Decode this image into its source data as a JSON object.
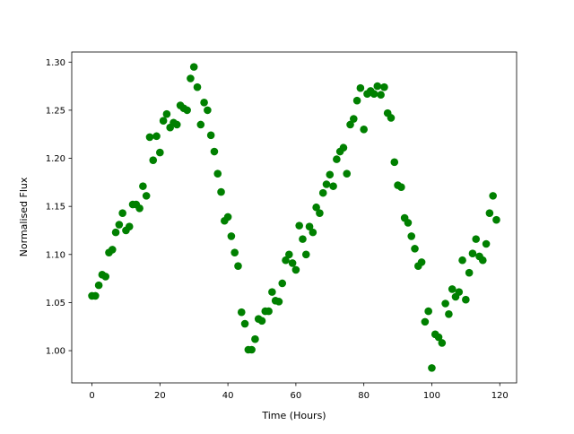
{
  "chart_data": {
    "type": "scatter",
    "x_label": "Time (Hours)",
    "y_label": "Normalised Flux",
    "color": "#008000",
    "x": [
      0,
      1,
      2,
      3,
      4,
      5,
      6,
      7,
      8,
      9,
      10,
      11,
      12,
      13,
      14,
      15,
      16,
      17,
      18,
      19,
      20,
      21,
      22,
      23,
      24,
      25,
      26,
      27,
      28,
      29,
      30,
      31,
      32,
      33,
      34,
      35,
      36,
      37,
      38,
      39,
      40,
      41,
      42,
      43,
      44,
      45,
      46,
      47,
      48,
      49,
      50,
      51,
      52,
      53,
      54,
      55,
      56,
      57,
      58,
      59,
      60,
      61,
      62,
      63,
      64,
      65,
      66,
      67,
      68,
      69,
      70,
      71,
      72,
      73,
      74,
      75,
      76,
      77,
      78,
      79,
      80,
      81,
      82,
      83,
      84,
      85,
      86,
      87,
      88,
      89,
      90,
      91,
      92,
      93,
      94,
      95,
      96,
      97,
      98,
      99,
      100,
      101,
      102,
      103,
      104,
      105,
      106,
      107,
      108,
      109,
      110,
      111,
      112,
      113,
      114,
      115,
      116,
      117,
      118,
      119
    ],
    "values": [
      1.057,
      1.057,
      1.068,
      1.079,
      1.077,
      1.102,
      1.105,
      1.123,
      1.131,
      1.143,
      1.125,
      1.129,
      1.152,
      1.152,
      1.148,
      1.171,
      1.161,
      1.222,
      1.198,
      1.223,
      1.206,
      1.239,
      1.246,
      1.232,
      1.237,
      1.235,
      1.255,
      1.252,
      1.25,
      1.283,
      1.295,
      1.274,
      1.235,
      1.258,
      1.25,
      1.224,
      1.207,
      1.184,
      1.165,
      1.135,
      1.139,
      1.119,
      1.102,
      1.088,
      1.04,
      1.028,
      1.001,
      1.001,
      1.012,
      1.033,
      1.031,
      1.041,
      1.041,
      1.061,
      1.052,
      1.051,
      1.07,
      1.094,
      1.1,
      1.091,
      1.084,
      1.13,
      1.116,
      1.1,
      1.129,
      1.123,
      1.149,
      1.143,
      1.164,
      1.173,
      1.183,
      1.171,
      1.199,
      1.207,
      1.211,
      1.184,
      1.235,
      1.241,
      1.26,
      1.273,
      1.23,
      1.267,
      1.27,
      1.267,
      1.275,
      1.266,
      1.274,
      1.247,
      1.242,
      1.196,
      1.172,
      1.17,
      1.138,
      1.133,
      1.119,
      1.106,
      1.088,
      1.092,
      1.03,
      1.041,
      0.982,
      1.017,
      1.014,
      1.008,
      1.049,
      1.038,
      1.064,
      1.056,
      1.061,
      1.094,
      1.053,
      1.081,
      1.101,
      1.116,
      1.098,
      1.094,
      1.111,
      1.143,
      1.161,
      1.136
    ],
    "xlim": [
      -5.95,
      124.95
    ],
    "ylim": [
      0.9665,
      1.3105
    ],
    "xticks": [
      0,
      20,
      40,
      60,
      80,
      100,
      120
    ],
    "yticks": [
      {
        "value": 1.0,
        "label": "1.00"
      },
      {
        "value": 1.05,
        "label": "1.05"
      },
      {
        "value": 1.1,
        "label": "1.10"
      },
      {
        "value": 1.15,
        "label": "1.15"
      },
      {
        "value": 1.2,
        "label": "1.20"
      },
      {
        "value": 1.25,
        "label": "1.25"
      },
      {
        "value": 1.3,
        "label": "1.30"
      }
    ]
  }
}
